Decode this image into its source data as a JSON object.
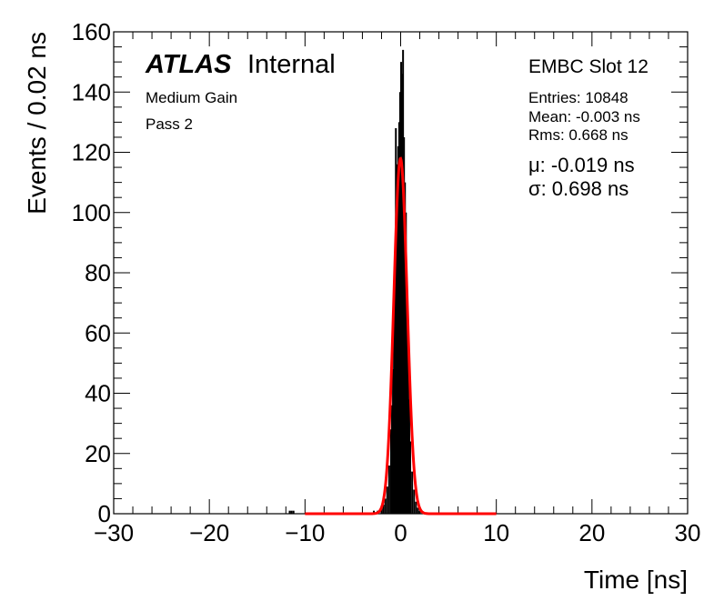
{
  "chart_data": {
    "type": "histogram",
    "xlabel": "Time [ns]",
    "ylabel": "Events / 0.02 ns",
    "xlim": [
      -30,
      30
    ],
    "ylim": [
      0,
      160
    ],
    "x_ticks": [
      "−30",
      "−20",
      "−10",
      "0",
      "10",
      "20",
      "30"
    ],
    "y_ticks": [
      "0",
      "20",
      "40",
      "60",
      "80",
      "100",
      "120",
      "140",
      "160"
    ],
    "atlas_label": "ATLAS",
    "atlas_sublabel": "Internal",
    "labels_left": [
      "Medium Gain",
      "Pass 2"
    ],
    "channel_label": "EMBC Slot 12",
    "stats": [
      "Entries: 10848",
      "Mean: -0.003 ns",
      "Rms: 0.668 ns"
    ],
    "fit_params": [
      "μ: -0.019 ns",
      "σ: 0.698 ns"
    ],
    "histogram": {
      "color": "#000000",
      "bins": [
        [
          -11.6,
          1
        ],
        [
          -11.4,
          1
        ],
        [
          -11.2,
          1
        ],
        [
          -2.8,
          1
        ],
        [
          -2.4,
          1
        ],
        [
          -2.0,
          2
        ],
        [
          -1.8,
          3
        ],
        [
          -1.6,
          5
        ],
        [
          -1.4,
          9
        ],
        [
          -1.2,
          16
        ],
        [
          -1.0,
          28
        ],
        [
          -0.9,
          36
        ],
        [
          -0.8,
          48
        ],
        [
          -0.7,
          62
        ],
        [
          -0.6,
          85
        ],
        [
          -0.5,
          128
        ],
        [
          -0.45,
          98
        ],
        [
          -0.4,
          116
        ],
        [
          -0.35,
          78
        ],
        [
          -0.3,
          102
        ],
        [
          -0.25,
          122
        ],
        [
          -0.2,
          108
        ],
        [
          -0.15,
          130
        ],
        [
          -0.1,
          115
        ],
        [
          -0.05,
          140
        ],
        [
          0.0,
          112
        ],
        [
          0.05,
          150
        ],
        [
          0.1,
          120
        ],
        [
          0.15,
          146
        ],
        [
          0.2,
          108
        ],
        [
          0.25,
          154
        ],
        [
          0.3,
          110
        ],
        [
          0.35,
          125
        ],
        [
          0.4,
          98
        ],
        [
          0.45,
          110
        ],
        [
          0.5,
          92
        ],
        [
          0.55,
          100
        ],
        [
          0.6,
          78
        ],
        [
          0.7,
          64
        ],
        [
          0.8,
          50
        ],
        [
          0.9,
          38
        ],
        [
          1.0,
          24
        ],
        [
          1.2,
          14
        ],
        [
          1.4,
          8
        ],
        [
          1.6,
          4
        ],
        [
          1.8,
          2
        ],
        [
          2.0,
          1
        ]
      ]
    },
    "fit": {
      "type": "gaussian",
      "color": "#ff0000",
      "amplitude": 118,
      "mean": -0.019,
      "sigma": 0.698,
      "range": [
        -10,
        10
      ]
    }
  }
}
